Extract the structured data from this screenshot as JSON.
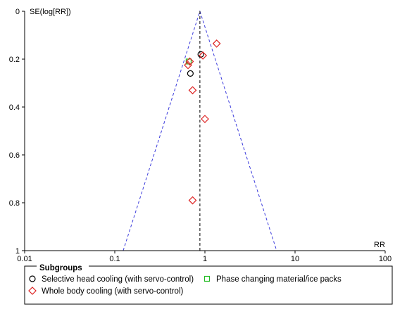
{
  "chart_data": {
    "type": "scatter",
    "title": "",
    "xlabel": "RR",
    "ylabel": "SE(log[RR])",
    "x_scale": "log",
    "xlim": [
      0.01,
      100
    ],
    "ylim": [
      0,
      1
    ],
    "y_inverted": true,
    "x_ticks": [
      "0.01",
      "0.1",
      "1",
      "10",
      "100"
    ],
    "y_ticks": [
      "0",
      "0.2",
      "0.4",
      "0.6",
      "0.8",
      "1"
    ],
    "pooled_estimate": 0.88,
    "funnel_color": "#3b3bdc",
    "legend": {
      "title": "Subgroups",
      "placement": "bottom"
    },
    "series": [
      {
        "name": "Selective head cooling (with servo-control)",
        "marker": "circle",
        "color": "#000000",
        "points": [
          {
            "x": 0.9,
            "y": 0.18
          },
          {
            "x": 0.69,
            "y": 0.26
          }
        ]
      },
      {
        "name": "Phase changing material/ice packs",
        "marker": "square",
        "color": "#22bb22",
        "points": [
          {
            "x": 0.66,
            "y": 0.21
          }
        ]
      },
      {
        "name": "Whole body cooling (with servo-control)",
        "marker": "diamond",
        "color": "#dd2222",
        "points": [
          {
            "x": 1.35,
            "y": 0.135
          },
          {
            "x": 0.95,
            "y": 0.185
          },
          {
            "x": 0.68,
            "y": 0.21
          },
          {
            "x": 0.65,
            "y": 0.225
          },
          {
            "x": 0.73,
            "y": 0.33
          },
          {
            "x": 1.0,
            "y": 0.45
          },
          {
            "x": 0.73,
            "y": 0.79
          }
        ]
      }
    ]
  }
}
